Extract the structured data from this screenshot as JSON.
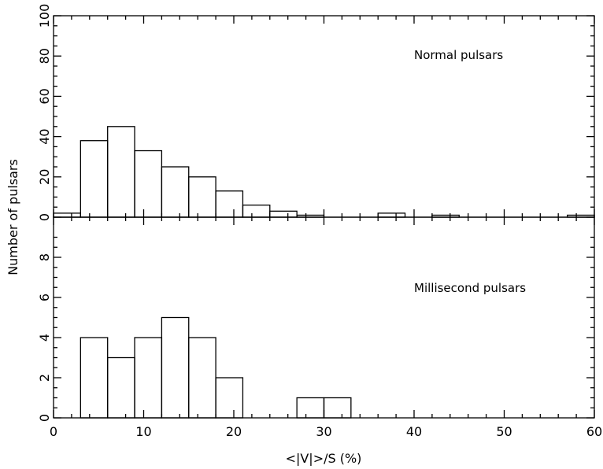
{
  "chart_data": [
    {
      "type": "bar",
      "panel": "top",
      "annotation": "Normal pulsars",
      "bin_edges": [
        0,
        3,
        6,
        9,
        12,
        15,
        18,
        21,
        24,
        27,
        30,
        33,
        36,
        39,
        42,
        45,
        48,
        51,
        54,
        57,
        60
      ],
      "values": [
        2,
        38,
        45,
        33,
        25,
        20,
        13,
        6,
        3,
        1,
        0,
        0,
        2,
        0,
        1,
        0,
        0,
        0,
        0,
        1
      ],
      "xlim": [
        0,
        60
      ],
      "ylim": [
        0,
        100
      ],
      "y_ticks": [
        "0",
        "20",
        "40",
        "60",
        "80",
        "100"
      ],
      "xlabel": "",
      "ylabel": ""
    },
    {
      "type": "bar",
      "panel": "bottom",
      "annotation": "Millisecond pulsars",
      "bin_edges": [
        0,
        3,
        6,
        9,
        12,
        15,
        18,
        21,
        24,
        27,
        30,
        33,
        36,
        39,
        42,
        45,
        48,
        51,
        54,
        57,
        60
      ],
      "values": [
        0,
        4,
        3,
        4,
        5,
        4,
        2,
        0,
        0,
        1,
        1,
        0,
        0,
        0,
        0,
        0,
        0,
        0,
        0,
        0
      ],
      "xlim": [
        0,
        60
      ],
      "ylim": [
        0,
        10
      ],
      "y_ticks": [
        "0",
        "2",
        "4",
        "6",
        "8"
      ],
      "x_ticks": [
        "0",
        "10",
        "20",
        "30",
        "40",
        "50",
        "60"
      ],
      "xlabel": "<|V|>/S (%)",
      "ylabel": ""
    }
  ],
  "shared_ylabel": "Number of pulsars"
}
